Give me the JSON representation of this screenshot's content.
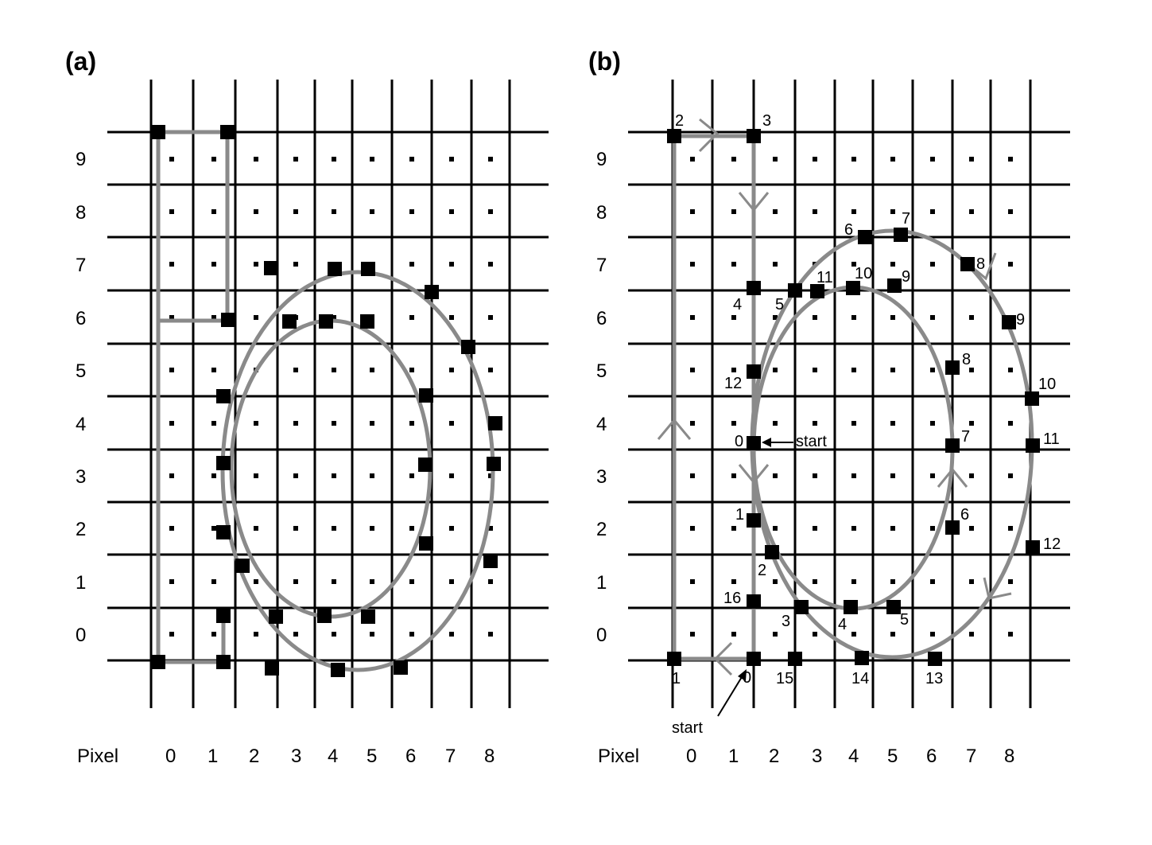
{
  "panels": [
    {
      "id": "a",
      "title": "(a)",
      "pixel_caption": "Pixel",
      "pixel_labels": [
        "0",
        "1",
        "2",
        "3",
        "4",
        "5",
        "6",
        "7",
        "8"
      ],
      "row_labels": [
        "9",
        "8",
        "7",
        "6",
        "5",
        "4",
        "3",
        "2",
        "1",
        "0"
      ],
      "vertex_labels": [],
      "annotations": []
    },
    {
      "id": "b",
      "title": "(b)",
      "pixel_caption": "Pixel",
      "pixel_labels": [
        "0",
        "1",
        "2",
        "3",
        "4",
        "5",
        "6",
        "7",
        "8"
      ],
      "row_labels": [
        "9",
        "8",
        "7",
        "6",
        "5",
        "4",
        "3",
        "2",
        "1",
        "0"
      ],
      "vertex_labels": [
        "2",
        "3",
        "4",
        "5",
        "11",
        "10",
        "9",
        "6",
        "7",
        "8",
        "9",
        "8",
        "12",
        "10",
        "0",
        "7",
        "11",
        "1",
        "6",
        "12",
        "2",
        "16",
        "3",
        "4",
        "5",
        "1",
        "0",
        "15",
        "14",
        "13"
      ],
      "annotations": [
        "start",
        "start"
      ]
    }
  ]
}
